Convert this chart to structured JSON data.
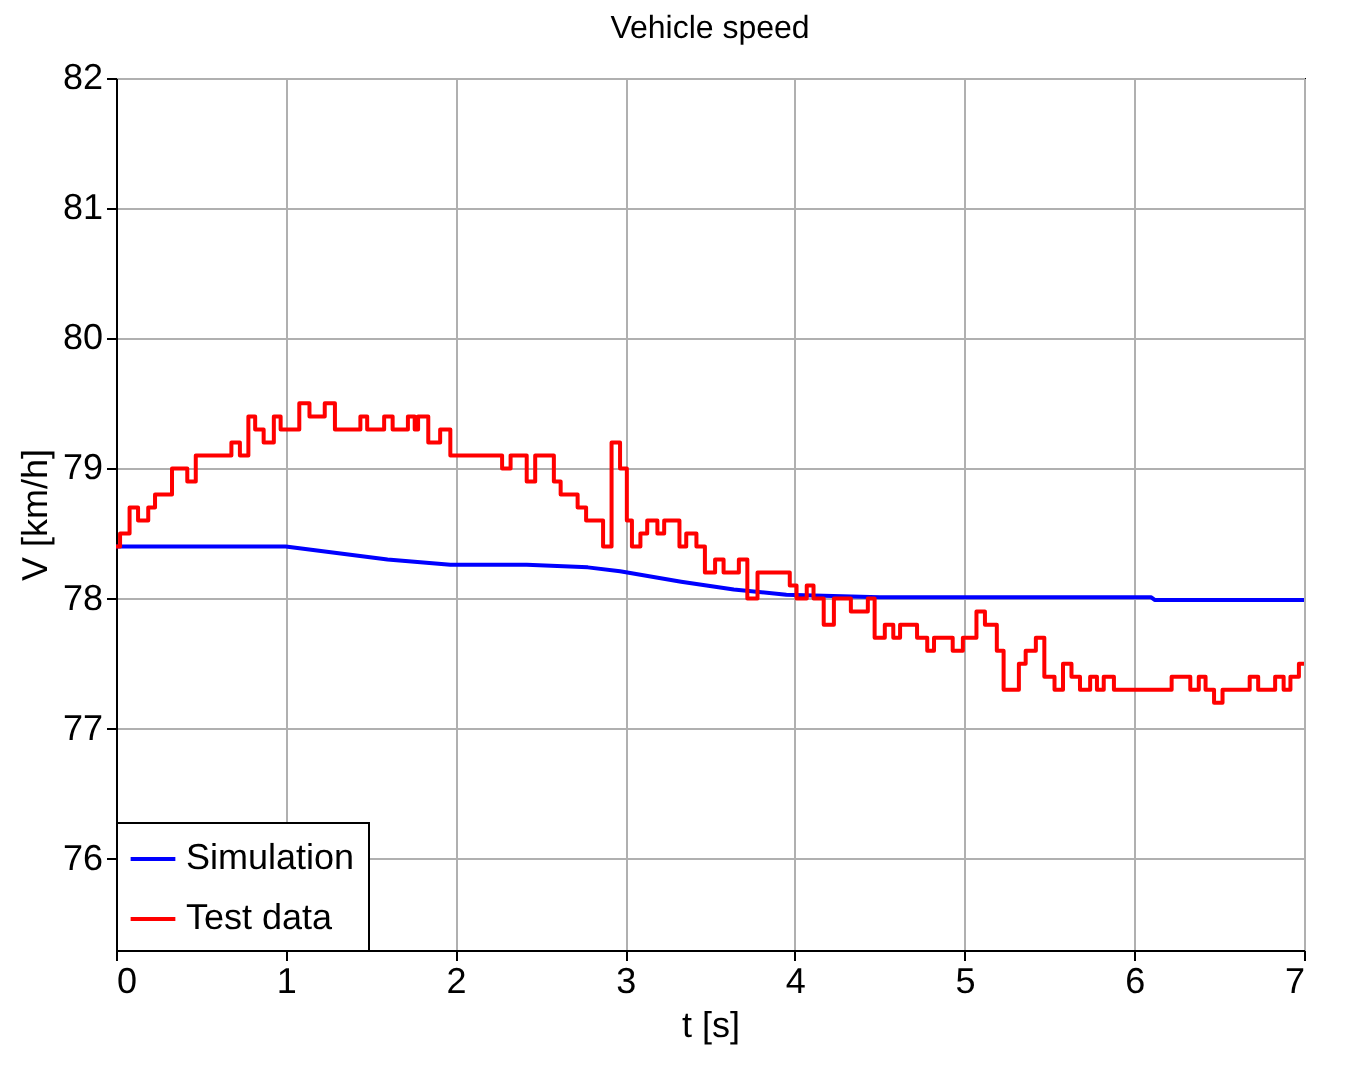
{
  "chart_data": {
    "type": "line",
    "title": "Vehicle speed",
    "xlabel": "t  [s]",
    "ylabel": "V  [km/h]",
    "xlim": [
      0,
      7
    ],
    "xticks": [
      0,
      1,
      2,
      3,
      4,
      5,
      6,
      7
    ],
    "ylim": [
      75.3,
      82
    ],
    "yticks": [
      76,
      77,
      78,
      79,
      80,
      81,
      82
    ],
    "grid": true,
    "legend": "bottom left",
    "series": [
      {
        "name": "Simulation",
        "color": "#0000ff",
        "type": "line",
        "x": [
          0,
          1.0,
          1.3,
          1.6,
          1.97,
          2.42,
          2.78,
          2.97,
          3.33,
          3.64,
          3.95,
          4.5,
          6.1,
          6.12,
          7
        ],
        "values": [
          78.4,
          78.4,
          78.35,
          78.3,
          78.26,
          78.26,
          78.24,
          78.21,
          78.13,
          78.07,
          78.03,
          78.01,
          78.01,
          77.99,
          77.99
        ]
      },
      {
        "name": "Test data",
        "color": "#ff0000",
        "type": "step",
        "x": [
          0,
          0.024,
          0.08,
          0.13,
          0.19,
          0.23,
          0.33,
          0.42,
          0.47,
          0.68,
          0.73,
          0.78,
          0.82,
          0.87,
          0.93,
          0.97,
          1.08,
          1.14,
          1.23,
          1.29,
          1.44,
          1.48,
          1.58,
          1.63,
          1.72,
          1.76,
          1.78,
          1.84,
          1.91,
          1.97,
          2.275,
          2.325,
          2.42,
          2.47,
          2.58,
          2.62,
          2.72,
          2.77,
          2.87,
          2.92,
          2.97,
          3.01,
          3.04,
          3.09,
          3.13,
          3.19,
          3.23,
          3.32,
          3.36,
          3.42,
          3.47,
          3.53,
          3.58,
          3.67,
          3.72,
          3.78,
          3.97,
          4.01,
          4.07,
          4.11,
          4.17,
          4.23,
          4.33,
          4.43,
          4.47,
          4.53,
          4.58,
          4.62,
          4.72,
          4.78,
          4.82,
          4.93,
          4.99,
          5.07,
          5.12,
          5.19,
          5.23,
          5.32,
          5.36,
          5.42,
          5.47,
          5.53,
          5.58,
          5.63,
          5.68,
          5.74,
          5.78,
          5.82,
          5.88,
          6.22,
          6.33,
          6.38,
          6.42,
          6.47,
          6.52,
          6.68,
          6.73,
          6.83,
          6.88,
          6.92,
          6.97,
          7.0
        ],
        "values": [
          78.4,
          78.5,
          78.7,
          78.6,
          78.7,
          78.8,
          79.0,
          78.9,
          79.1,
          79.2,
          79.1,
          79.4,
          79.3,
          79.2,
          79.4,
          79.3,
          79.5,
          79.4,
          79.5,
          79.3,
          79.4,
          79.3,
          79.4,
          79.3,
          79.4,
          79.3,
          79.4,
          79.2,
          79.3,
          79.1,
          79.0,
          79.1,
          78.9,
          79.1,
          78.9,
          78.8,
          78.7,
          78.6,
          78.4,
          79.2,
          79.0,
          78.6,
          78.4,
          78.5,
          78.6,
          78.5,
          78.6,
          78.4,
          78.5,
          78.4,
          78.2,
          78.3,
          78.2,
          78.3,
          78.0,
          78.2,
          78.1,
          78.0,
          78.1,
          78.0,
          77.8,
          78.0,
          77.9,
          78.0,
          77.7,
          77.8,
          77.7,
          77.8,
          77.7,
          77.6,
          77.7,
          77.6,
          77.7,
          77.9,
          77.8,
          77.6,
          77.3,
          77.5,
          77.6,
          77.7,
          77.4,
          77.3,
          77.5,
          77.4,
          77.3,
          77.4,
          77.3,
          77.4,
          77.3,
          77.4,
          77.3,
          77.4,
          77.3,
          77.2,
          77.3,
          77.4,
          77.3,
          77.4,
          77.3,
          77.4,
          77.5,
          77.5
        ]
      }
    ]
  }
}
